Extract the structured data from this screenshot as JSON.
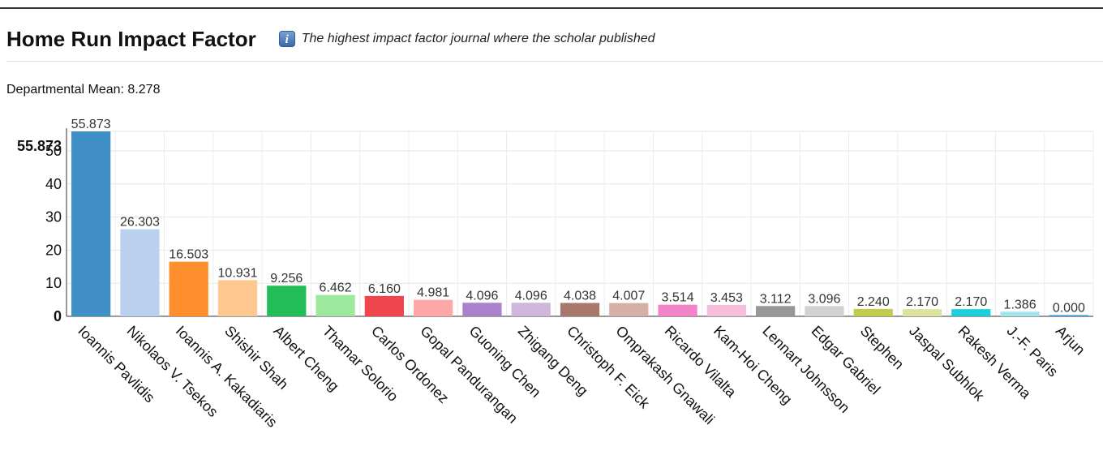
{
  "header": {
    "title": "Home Run Impact Factor",
    "info_icon": "info-icon",
    "subtitle": "The highest impact factor journal where the scholar published"
  },
  "mean": {
    "label": "Departmental Mean:",
    "value": "8.278"
  },
  "chart_data": {
    "type": "bar",
    "title": "",
    "xlabel": "",
    "ylabel": "",
    "ylim": [
      0,
      55.873
    ],
    "yticks": [
      0,
      10,
      20,
      30,
      40,
      50
    ],
    "max_label": "55.873",
    "grid": true,
    "legend": "none",
    "categories": [
      "Ioannis Pavlidis",
      "Nikolaos V. Tsekos",
      "Ioannis A. Kakadiaris",
      "Shishir Shah",
      "Albert Cheng",
      "Thamar Solorio",
      "Carlos Ordonez",
      "Gopal Pandurangan",
      "Guoning Chen",
      "Zhigang Deng",
      "Christoph F. Eick",
      "Omprakash Gnawali",
      "Ricardo Vilalta",
      "Kam-Hoi Cheng",
      "Lennart Johnsson",
      "Edgar Gabriel",
      "Stephen",
      "Jaspal Subhlok",
      "Rakesh Verma",
      "J.-F. Paris",
      "Arjun"
    ],
    "values": [
      55.873,
      26.303,
      16.503,
      10.931,
      9.256,
      6.462,
      6.16,
      4.981,
      4.096,
      4.096,
      4.038,
      4.007,
      3.514,
      3.453,
      3.112,
      3.096,
      2.24,
      2.17,
      2.17,
      1.386,
      0.0
    ],
    "value_labels": [
      "55.873",
      "26.303",
      "16.503",
      "10.931",
      "9.256",
      "6.462",
      "6.160",
      "4.981",
      "4.096",
      "4.096",
      "4.038",
      "4.007",
      "3.514",
      "3.453",
      "3.112",
      "3.096",
      "2.240",
      "2.170",
      "2.170",
      "1.386",
      "0.000"
    ],
    "colors": [
      "#3f8fc6",
      "#b9d1ee",
      "#fe8f2c",
      "#fec891",
      "#23bd57",
      "#9ce89c",
      "#f0454d",
      "#fda8a7",
      "#a883cc",
      "#cdb8db",
      "#a8786c",
      "#d5b0a7",
      "#f383c8",
      "#f6bfdc",
      "#979797",
      "#d2d2d2",
      "#c3cb4d",
      "#dfe19e",
      "#1ccfdb",
      "#a3e3ea",
      "#2f9bd2"
    ]
  }
}
